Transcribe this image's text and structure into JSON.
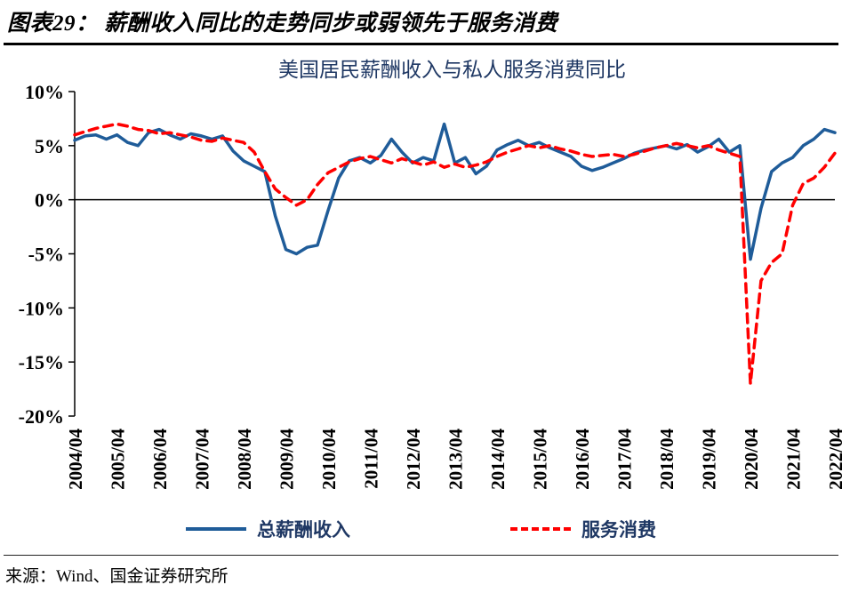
{
  "header": {
    "title": "图表29： 薪酬收入同比的走势同步或弱领先于服务消费"
  },
  "chart_data": {
    "type": "line",
    "title": "美国居民薪酬收入与私人服务消费同比",
    "grid": false,
    "legend_position": "bottom",
    "ylim": [
      -20,
      10
    ],
    "yticks": [
      10,
      5,
      0,
      -5,
      -10,
      -15,
      -20
    ],
    "ytick_labels": [
      "10%",
      "5%",
      "0%",
      "-5%",
      "-10%",
      "-15%",
      "-20%"
    ],
    "x_tick_every": 4,
    "x": [
      "2004/04",
      "2004/07",
      "2004/10",
      "2005/01",
      "2005/04",
      "2005/07",
      "2005/10",
      "2006/01",
      "2006/04",
      "2006/07",
      "2006/10",
      "2007/01",
      "2007/04",
      "2007/07",
      "2007/10",
      "2008/01",
      "2008/04",
      "2008/07",
      "2008/10",
      "2009/01",
      "2009/04",
      "2009/07",
      "2009/10",
      "2010/01",
      "2010/04",
      "2010/07",
      "2010/10",
      "2011/01",
      "2011/04",
      "2011/07",
      "2011/10",
      "2012/01",
      "2012/04",
      "2012/07",
      "2012/10",
      "2013/01",
      "2013/04",
      "2013/07",
      "2013/10",
      "2014/01",
      "2014/04",
      "2014/07",
      "2014/10",
      "2015/01",
      "2015/04",
      "2015/07",
      "2015/10",
      "2016/01",
      "2016/04",
      "2016/07",
      "2016/10",
      "2017/01",
      "2017/04",
      "2017/07",
      "2017/10",
      "2018/01",
      "2018/04",
      "2018/07",
      "2018/10",
      "2019/01",
      "2019/04",
      "2019/07",
      "2019/10",
      "2020/01",
      "2020/04",
      "2020/07",
      "2020/10",
      "2021/01",
      "2021/04",
      "2021/07",
      "2021/10",
      "2022/01",
      "2022/04"
    ],
    "series": [
      {
        "name": "总薪酬收入",
        "color": "#1F5C99",
        "dash": null,
        "values": [
          5.5,
          5.9,
          6.0,
          5.6,
          6.0,
          5.3,
          5.0,
          6.2,
          6.5,
          6.0,
          5.6,
          6.1,
          5.9,
          5.6,
          5.9,
          4.5,
          3.6,
          3.1,
          2.6,
          -1.5,
          -4.6,
          -5.0,
          -4.4,
          -4.2,
          -1.0,
          2.0,
          3.6,
          3.9,
          3.4,
          4.1,
          5.6,
          4.4,
          3.4,
          3.9,
          3.6,
          7.0,
          3.4,
          3.9,
          2.4,
          3.1,
          4.6,
          5.1,
          5.5,
          5.0,
          5.3,
          4.8,
          4.4,
          4.0,
          3.1,
          2.7,
          3.0,
          3.4,
          3.8,
          4.3,
          4.6,
          4.8,
          5.0,
          4.7,
          5.1,
          4.4,
          4.9,
          5.6,
          4.4,
          5.0,
          -5.5,
          -0.8,
          2.6,
          3.4,
          3.9,
          5.0,
          5.6,
          6.5,
          6.2
        ]
      },
      {
        "name": "服务消费",
        "color": "#FF0000",
        "dash": "10 7",
        "values": [
          6.0,
          6.3,
          6.6,
          6.8,
          7.0,
          6.8,
          6.5,
          6.4,
          6.1,
          6.2,
          6.0,
          5.8,
          5.5,
          5.4,
          5.7,
          5.5,
          5.3,
          4.4,
          2.6,
          1.0,
          0.2,
          -0.5,
          0.0,
          1.4,
          2.5,
          3.0,
          3.5,
          3.8,
          4.0,
          3.7,
          3.4,
          3.8,
          3.5,
          3.2,
          3.5,
          3.0,
          3.3,
          3.0,
          3.2,
          3.5,
          4.0,
          4.4,
          4.7,
          5.0,
          4.8,
          5.0,
          4.7,
          4.5,
          4.2,
          4.0,
          4.1,
          4.2,
          4.0,
          4.2,
          4.5,
          4.8,
          5.0,
          5.2,
          5.0,
          4.8,
          5.0,
          4.6,
          4.3,
          4.0,
          -17.0,
          -7.5,
          -5.8,
          -5.0,
          -0.5,
          1.5,
          2.0,
          3.0,
          4.3
        ]
      }
    ]
  },
  "footer": {
    "source": "来源：Wind、国金证券研究所"
  }
}
